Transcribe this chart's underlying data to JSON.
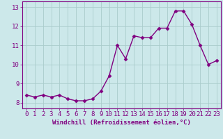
{
  "x": [
    0,
    1,
    2,
    3,
    4,
    5,
    6,
    7,
    8,
    9,
    10,
    11,
    12,
    13,
    14,
    15,
    16,
    17,
    18,
    19,
    20,
    21,
    22,
    23
  ],
  "y": [
    8.4,
    8.3,
    8.4,
    8.3,
    8.4,
    8.2,
    8.1,
    8.1,
    8.2,
    8.6,
    9.4,
    11.0,
    10.3,
    11.5,
    11.4,
    11.4,
    11.9,
    11.9,
    12.8,
    12.8,
    12.1,
    11.0,
    10.0,
    10.2
  ],
  "line_color": "#800080",
  "marker": "D",
  "marker_size": 2.5,
  "bg_color": "#cce8ea",
  "grid_color": "#aacccc",
  "xlabel": "Windchill (Refroidissement éolien,°C)",
  "ylim": [
    7.7,
    13.3
  ],
  "xlim": [
    -0.5,
    23.5
  ],
  "yticks": [
    8,
    9,
    10,
    11,
    12,
    13
  ],
  "xticks": [
    0,
    1,
    2,
    3,
    4,
    5,
    6,
    7,
    8,
    9,
    10,
    11,
    12,
    13,
    14,
    15,
    16,
    17,
    18,
    19,
    20,
    21,
    22,
    23
  ],
  "xlabel_fontsize": 6.5,
  "tick_fontsize": 6.5,
  "line_width": 1.0,
  "line_color2": "#800080",
  "axis_color": "#800080"
}
